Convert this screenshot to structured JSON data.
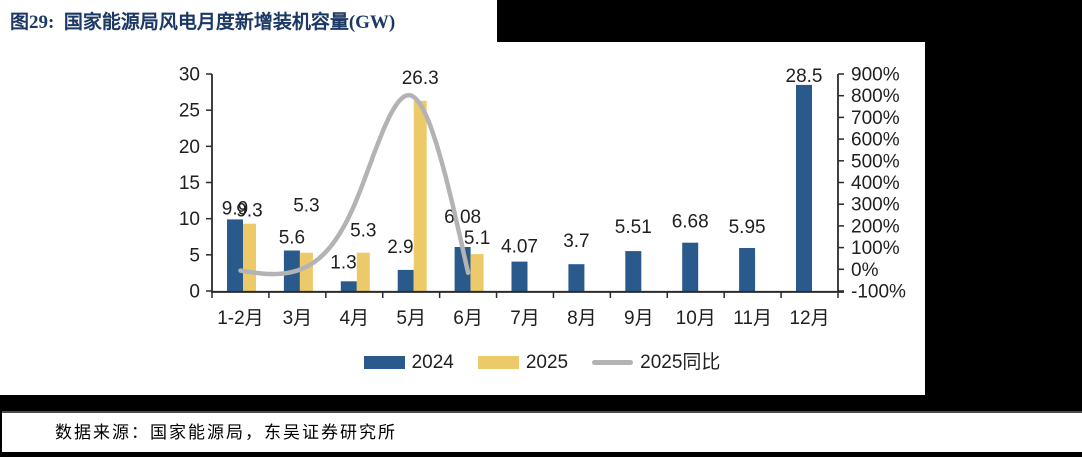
{
  "figure": {
    "title": "图29:  国家能源局风电月度新增装机容量(GW)",
    "source": "数据来源：国家能源局，东吴证券研究所"
  },
  "legend": {
    "items": [
      {
        "label": "2024",
        "swatch": "bar",
        "color": "#2A5A8C"
      },
      {
        "label": "2025",
        "swatch": "bar",
        "color": "#EDCA69"
      },
      {
        "label": "2025同比",
        "swatch": "line",
        "color": "#B3B3B6"
      }
    ]
  },
  "chart_data": {
    "type": "bar",
    "subtype": "grouped-bar-with-smooth-line",
    "title": "国家能源局风电月度新增装机容量(GW)",
    "categories": [
      "1-2月",
      "3月",
      "4月",
      "5月",
      "6月",
      "7月",
      "8月",
      "9月",
      "10月",
      "11月",
      "12月"
    ],
    "series": [
      {
        "name": "2024",
        "type": "bar",
        "axis": "left",
        "color": "#2A5A8C",
        "values": [
          9.9,
          5.6,
          1.34,
          2.92,
          6.08,
          4.07,
          3.7,
          5.51,
          6.68,
          5.95,
          28.5
        ]
      },
      {
        "name": "2025",
        "type": "bar",
        "axis": "left",
        "color": "#EDCA69",
        "values": [
          9.3,
          5.3,
          5.3,
          26.3,
          5.1,
          null,
          null,
          null,
          null,
          null,
          null
        ]
      },
      {
        "name": "2025同比",
        "type": "line",
        "axis": "right",
        "unit": "%",
        "color": "#B3B3B6",
        "values": [
          -6.1,
          -5.4,
          295.5,
          800.7,
          -16.1,
          null,
          null,
          null,
          null,
          null,
          null
        ]
      }
    ],
    "data_labels": {
      "2024": [
        "9.9",
        "5.6",
        "1.34",
        "2.92",
        "6.08",
        "4.07",
        "3.7",
        "5.51",
        "6.68",
        "5.95",
        "28.5"
      ],
      "2025": [
        "9.3",
        "5.3",
        "5.3",
        "26.3",
        "5.1"
      ]
    },
    "left_axis": {
      "min": 0,
      "max": 30,
      "tick_labels": [
        "0",
        "5",
        "10",
        "15",
        "20",
        "25",
        "30"
      ]
    },
    "right_axis": {
      "min": -100,
      "max": 900,
      "tick_labels": [
        "-100%",
        "0%",
        "100%",
        "200%",
        "300%",
        "400%",
        "500%",
        "600%",
        "700%",
        "800%",
        "900%"
      ]
    },
    "gridlines": false,
    "legend_position": "bottom"
  }
}
